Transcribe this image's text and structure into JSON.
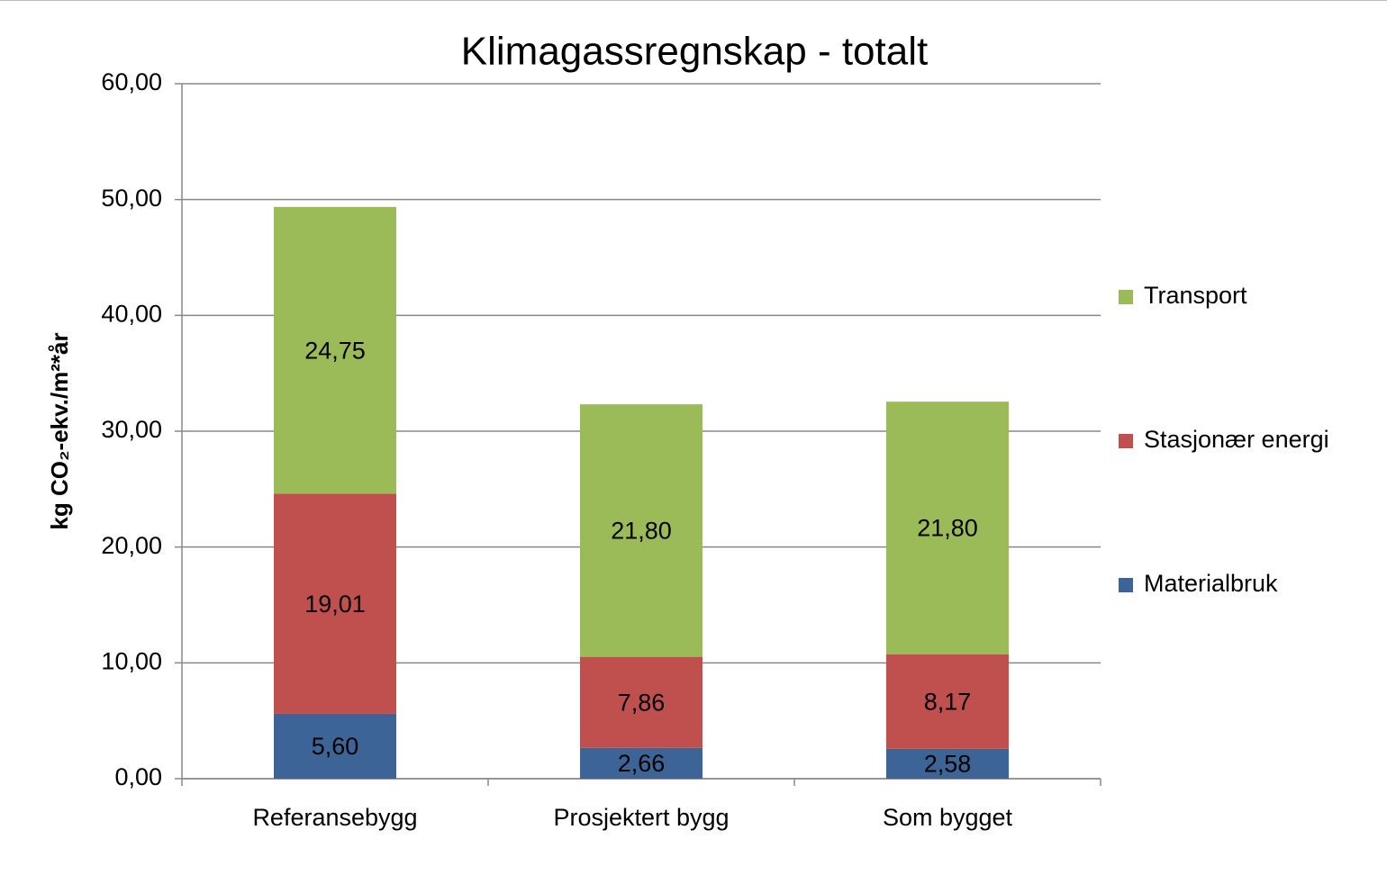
{
  "chart_data": {
    "type": "stacked_bar",
    "title": "Klimagassregnskap - totalt",
    "y_axis_label": "kg CO₂-ekv./m²*år",
    "categories": [
      "Referansebygg",
      "Prosjektert bygg",
      "Som bygget"
    ],
    "series": [
      {
        "name": "Materialbruk",
        "color": "#3c6496",
        "values": [
          5.6,
          2.66,
          2.58
        ],
        "value_labels": [
          "5,60",
          "2,66",
          "2,58"
        ]
      },
      {
        "name": "Stasjonær energi",
        "color": "#c0504d",
        "values": [
          19.01,
          7.86,
          8.17
        ],
        "value_labels": [
          "19,01",
          "7,86",
          "8,17"
        ]
      },
      {
        "name": "Transport",
        "color": "#9bbb59",
        "values": [
          24.75,
          21.8,
          21.8
        ],
        "value_labels": [
          "24,75",
          "21,80",
          "21,80"
        ]
      }
    ],
    "ylim": [
      0,
      60
    ],
    "yticks": [
      {
        "value": 0,
        "label": "0,00"
      },
      {
        "value": 10,
        "label": "10,00"
      },
      {
        "value": 20,
        "label": "20,00"
      },
      {
        "value": 30,
        "label": "30,00"
      },
      {
        "value": 40,
        "label": "40,00"
      },
      {
        "value": 50,
        "label": "50,00"
      },
      {
        "value": 60,
        "label": "60,00"
      }
    ],
    "grid": true,
    "legend": "right"
  }
}
